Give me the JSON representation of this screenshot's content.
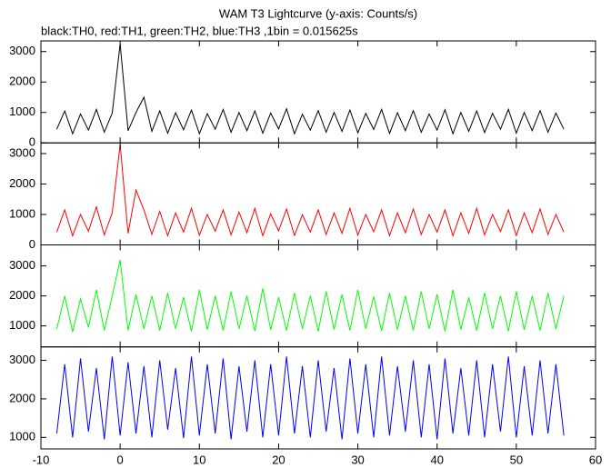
{
  "chart_data": {
    "type": "line",
    "title": "WAM T3 Lightcurve (y-axis: Counts/s)",
    "subtitle": "black:TH0, red:TH1, green:TH2, blue:TH3 ,1bin = 0.015625s",
    "x": [
      -8,
      -7,
      -6,
      -5,
      -4,
      -3,
      -2,
      -1,
      0,
      1,
      2,
      3,
      4,
      5,
      6,
      7,
      8,
      9,
      10,
      11,
      12,
      13,
      14,
      15,
      16,
      17,
      18,
      19,
      20,
      21,
      22,
      23,
      24,
      25,
      26,
      27,
      28,
      29,
      30,
      31,
      32,
      33,
      34,
      35,
      36,
      37,
      38,
      39,
      40,
      41,
      42,
      43,
      44,
      45,
      46,
      47,
      48,
      49,
      50,
      51,
      52,
      53,
      54,
      55,
      56
    ],
    "xlim": [
      -10,
      60
    ],
    "xticks": [
      -10,
      0,
      10,
      20,
      30,
      40,
      50,
      60
    ],
    "series": [
      {
        "color": "#000000",
        "ylim": [
          0,
          3350
        ],
        "yticks": [
          0,
          1000,
          2000,
          3000
        ],
        "values": [
          450,
          1050,
          300,
          950,
          420,
          1100,
          350,
          980,
          3250,
          400,
          1000,
          1500,
          380,
          1050,
          320,
          990,
          430,
          1080,
          300,
          960,
          450,
          1100,
          350,
          1000,
          400,
          1050,
          320,
          980,
          460,
          1120,
          300,
          940,
          420,
          1060,
          350,
          1000,
          380,
          1080,
          330,
          970,
          440,
          1100,
          310,
          990,
          400,
          1060,
          350,
          950,
          420,
          1090,
          300,
          1000,
          380,
          1050,
          340,
          970,
          450,
          1100,
          320,
          1000,
          400,
          1060,
          350,
          980,
          450
        ]
      },
      {
        "color": "#ff0000",
        "ylim": [
          0,
          3350
        ],
        "yticks": [
          0,
          1000,
          2000,
          3000
        ],
        "values": [
          420,
          1150,
          300,
          1000,
          450,
          1250,
          330,
          1050,
          3300,
          380,
          1800,
          1150,
          350,
          1100,
          300,
          1050,
          420,
          1200,
          320,
          1000,
          450,
          1150,
          330,
          1080,
          400,
          1200,
          300,
          1020,
          460,
          1180,
          310,
          990,
          420,
          1150,
          340,
          1050,
          380,
          1200,
          320,
          1000,
          430,
          1150,
          300,
          1050,
          400,
          1180,
          340,
          1000,
          420,
          1150,
          300,
          1050,
          380,
          1200,
          330,
          1000,
          440,
          1150,
          310,
          1050,
          400,
          1180,
          340,
          1000,
          420
        ]
      },
      {
        "color": "#00ff00",
        "ylim": [
          300,
          3700
        ],
        "yticks": [
          1000,
          2000,
          3000
        ],
        "values": [
          900,
          2000,
          800,
          1900,
          950,
          2200,
          850,
          2000,
          3200,
          850,
          2050,
          900,
          2000,
          850,
          2100,
          900,
          1950,
          820,
          2200,
          880,
          2000,
          850,
          2150,
          900,
          2000,
          830,
          2250,
          870,
          1950,
          850,
          2100,
          900,
          2000,
          820,
          2150,
          880,
          2050,
          850,
          2200,
          900,
          1980,
          830,
          2100,
          870,
          2000,
          850,
          2150,
          900,
          2050,
          820,
          2200,
          880,
          1950,
          850,
          2100,
          900,
          2000,
          830,
          2150,
          870,
          2000,
          850,
          2100,
          900,
          2000
        ]
      },
      {
        "color": "#0000ff",
        "ylim": [
          700,
          3350
        ],
        "yticks": [
          1000,
          2000,
          3000
        ],
        "values": [
          1100,
          2900,
          1000,
          3050,
          1150,
          2800,
          950,
          3100,
          1050,
          2950,
          1100,
          2850,
          1000,
          3000,
          1200,
          2800,
          980,
          3100,
          1050,
          2900,
          1100,
          3050,
          950,
          2850,
          1150,
          3000,
          1000,
          2900,
          1050,
          3100,
          1100,
          2850,
          1000,
          3000,
          1150,
          2800,
          950,
          3050,
          1100,
          2900,
          1000,
          3100,
          1050,
          2850,
          1150,
          3000,
          1000,
          2900,
          950,
          3050,
          1100,
          2800,
          1050,
          3000,
          1000,
          2900,
          1150,
          3100,
          1000,
          2850,
          1050,
          3000,
          1100,
          2900,
          1050
        ]
      }
    ]
  }
}
